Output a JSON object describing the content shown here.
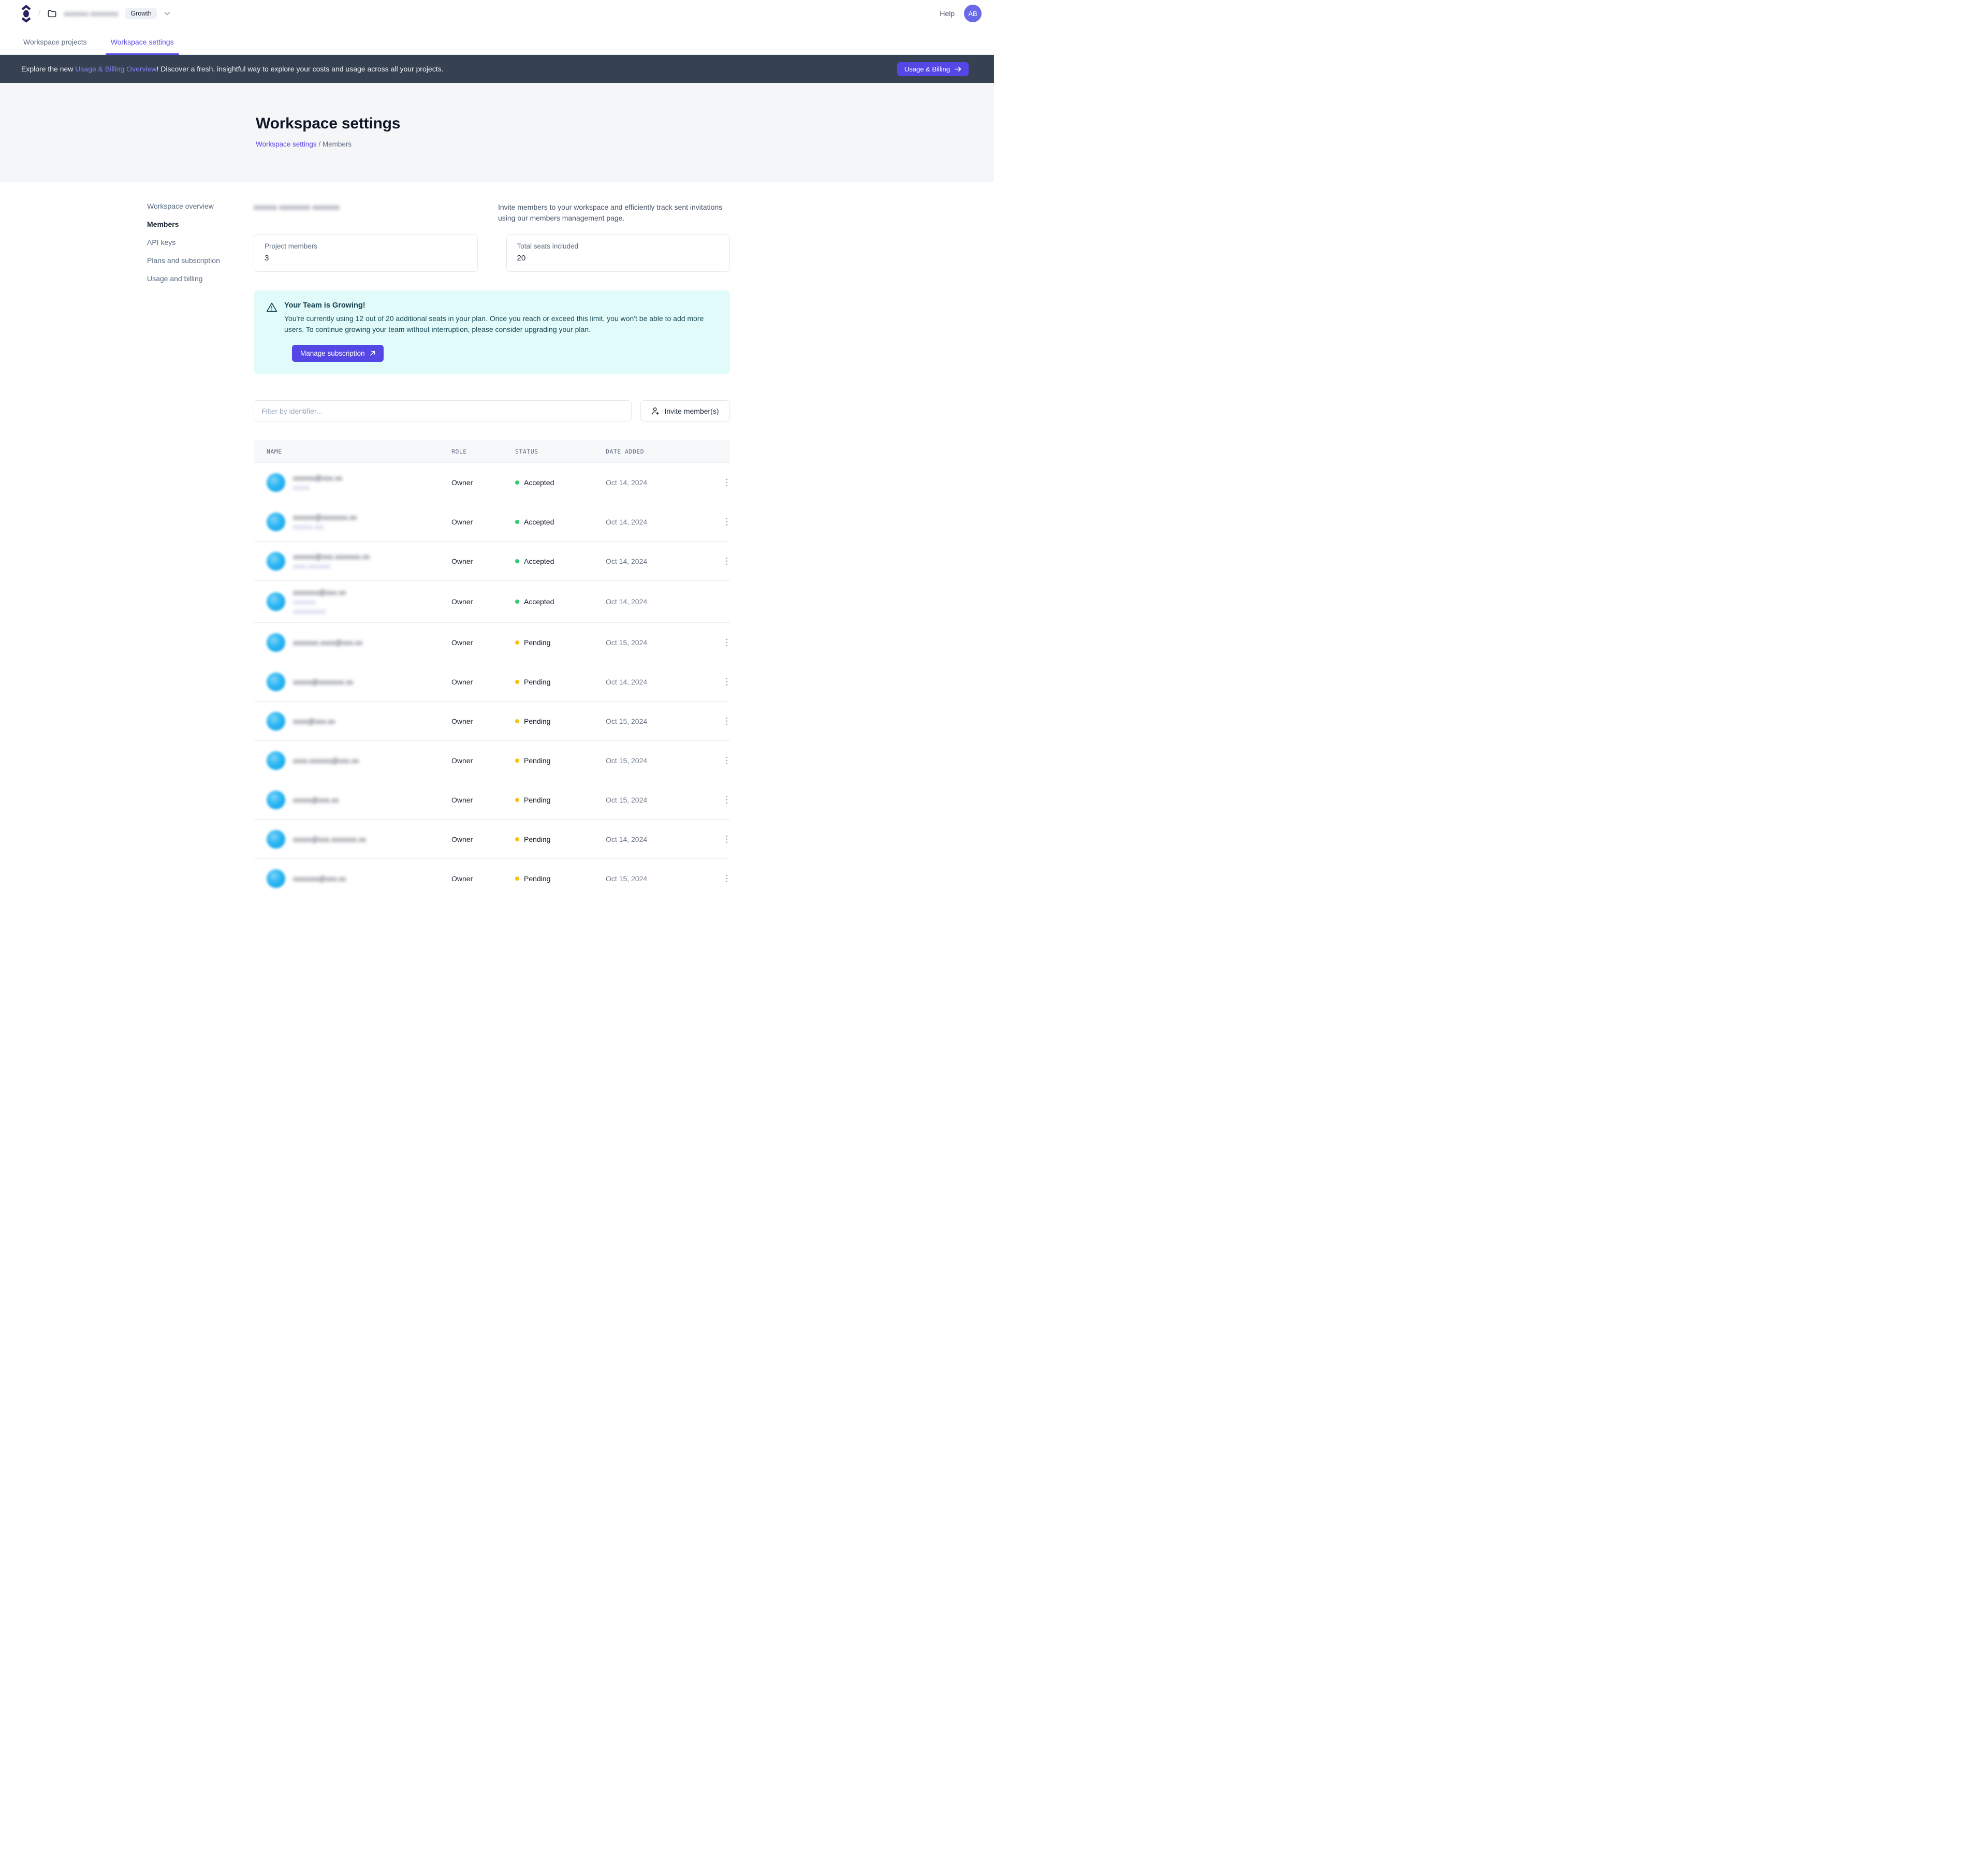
{
  "nav": {
    "breadcrumb_separator": "/",
    "workspace_name_masked": "xxxxxxx xxxxxxxx",
    "plan_badge": "Growth",
    "help_label": "Help",
    "avatar_initials": "AB",
    "tabs": [
      {
        "label": "Workspace projects",
        "active": false
      },
      {
        "label": "Workspace settings",
        "active": true
      }
    ]
  },
  "banner": {
    "text_prefix": "Explore the new ",
    "link_text": "Usage & Billing Overview",
    "text_suffix": "! Discover a fresh, insightful way to explore your costs and usage across all your projects.",
    "button_label": "Usage & Billing"
  },
  "header": {
    "title": "Workspace settings",
    "breadcrumb_link": "Workspace settings",
    "breadcrumb_sep": " / ",
    "breadcrumb_current": "Members"
  },
  "sidebar": {
    "items": [
      {
        "label": "Workspace overview",
        "active": false
      },
      {
        "label": "Members",
        "active": true
      },
      {
        "label": "API keys",
        "active": false
      },
      {
        "label": "Plans and subscription",
        "active": false
      },
      {
        "label": "Usage and billing",
        "active": false
      }
    ]
  },
  "members": {
    "section_title_masked": "xxxxxx xxxxxxxx xxxxxxx",
    "description": "Invite members to your workspace and efficiently track sent invitations using our members management page.",
    "stats": [
      {
        "label": "Project members",
        "value": "3"
      },
      {
        "label": "Total seats included",
        "value": "20"
      }
    ],
    "alert": {
      "title": "Your Team is Growing!",
      "body": "You're currently using 12 out of 20 additional seats in your plan. Once you reach or exceed this limit, you won't be able to add more users. To continue growing your team without interruption, please consider upgrading your plan.",
      "button_label": "Manage subscription"
    },
    "filter_placeholder": "Filter by identifier...",
    "invite_button_label": "Invite member(s)",
    "table": {
      "columns": [
        "NAME",
        "ROLE",
        "STATUS",
        "DATE ADDED"
      ],
      "status_colors": {
        "accepted": "#2ecc71",
        "pending": "#f5c211"
      },
      "rows": [
        {
          "email_masked": "xxxxxx@xxx.xx",
          "sub_masked": [
            "xxxxx"
          ],
          "role": "Owner",
          "status": "Accepted",
          "date": "Oct 14, 2024",
          "menu": true
        },
        {
          "email_masked": "xxxxxx@xxxxxxx.xx",
          "sub_masked": [
            "xxxxxx xxx"
          ],
          "role": "Owner",
          "status": "Accepted",
          "date": "Oct 14, 2024",
          "menu": true
        },
        {
          "email_masked": "xxxxxx@xxx.xxxxxxx.xx",
          "sub_masked": [
            "xxxx xxxxxxx"
          ],
          "role": "Owner",
          "status": "Accepted",
          "date": "Oct 14, 2024",
          "menu": true
        },
        {
          "email_masked": "xxxxxxx@xxx.xx",
          "sub_masked": [
            "xxxxxxx",
            "xxxxxxxxxx"
          ],
          "role": "Owner",
          "status": "Accepted",
          "date": "Oct 14, 2024",
          "menu": false
        },
        {
          "email_masked": "xxxxxxx.xxxx@xxx.xx",
          "sub_masked": [],
          "role": "Owner",
          "status": "Pending",
          "date": "Oct 15, 2024",
          "menu": true
        },
        {
          "email_masked": "xxxxx@xxxxxxx.xx",
          "sub_masked": [],
          "role": "Owner",
          "status": "Pending",
          "date": "Oct 14, 2024",
          "menu": true
        },
        {
          "email_masked": "xxxx@xxx.xx",
          "sub_masked": [],
          "role": "Owner",
          "status": "Pending",
          "date": "Oct 15, 2024",
          "menu": true
        },
        {
          "email_masked": "xxxx.xxxxxx@xxx.xx",
          "sub_masked": [],
          "role": "Owner",
          "status": "Pending",
          "date": "Oct 15, 2024",
          "menu": true
        },
        {
          "email_masked": "xxxxx@xxx.xx",
          "sub_masked": [],
          "role": "Owner",
          "status": "Pending",
          "date": "Oct 15, 2024",
          "menu": true
        },
        {
          "email_masked": "xxxxx@xxx.xxxxxxx.xx",
          "sub_masked": [],
          "role": "Owner",
          "status": "Pending",
          "date": "Oct 14, 2024",
          "menu": true
        },
        {
          "email_masked": "xxxxxxx@xxx.xx",
          "sub_masked": [],
          "role": "Owner",
          "status": "Pending",
          "date": "Oct 15, 2024",
          "menu": true
        }
      ]
    }
  }
}
